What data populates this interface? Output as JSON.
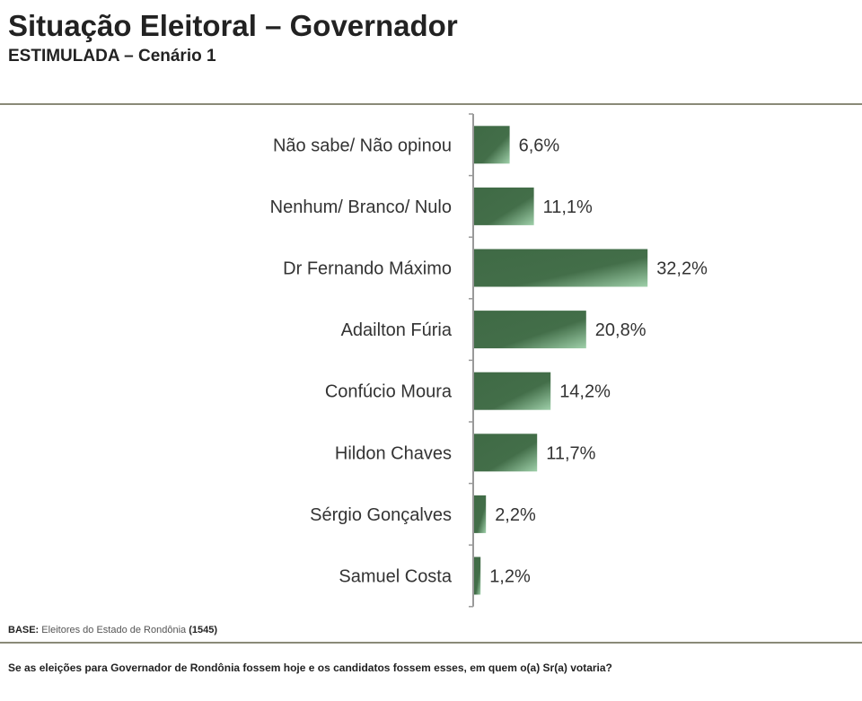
{
  "chart_data": {
    "type": "bar",
    "orientation": "horizontal",
    "title": "Situação Eleitoral – Governador",
    "subtitle": "ESTIMULADA – Cenário 1",
    "categories": [
      "Não sabe/ Não opinou",
      "Nenhum/ Branco/ Nulo",
      "Dr Fernando Máximo",
      "Adailton Fúria",
      "Confúcio Moura",
      "Hildon Chaves",
      "Sérgio Gonçalves",
      "Samuel Costa"
    ],
    "values": [
      6.6,
      11.1,
      32.2,
      20.8,
      14.2,
      11.7,
      2.2,
      1.2
    ],
    "value_labels": [
      "6,6%",
      "11,1%",
      "32,2%",
      "20,8%",
      "14,2%",
      "11,7%",
      "2,2%",
      "1,2%"
    ],
    "xlabel": "",
    "ylabel": "",
    "xlim": [
      0,
      40
    ],
    "grid": false,
    "bar_color": "#3f6a45",
    "bar_highlight": "#8fc39a"
  },
  "base": {
    "label": "BASE:",
    "text": "Eleitores do Estado de Rondônia",
    "count": "(1545)"
  },
  "question": "Se as eleições para Governador de Rondônia fossem hoje e os candidatos fossem esses, em quem o(a) Sr(a) votaria?"
}
